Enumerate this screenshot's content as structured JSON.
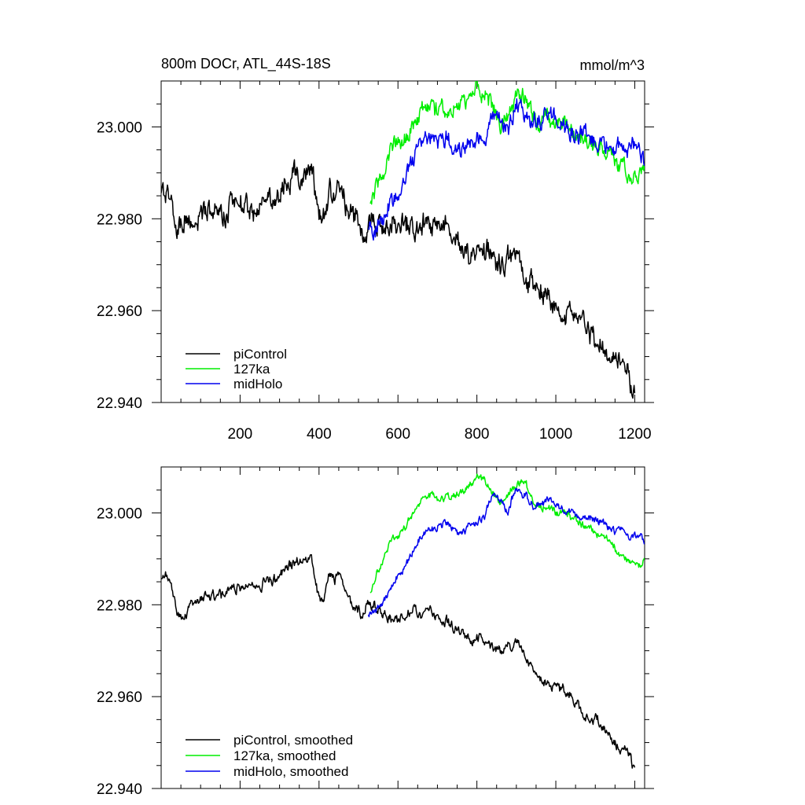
{
  "chart_data": [
    {
      "type": "line",
      "title": "800m DOCr, ATL_44S-18S",
      "units": "mmol/m^3",
      "xlabel": "",
      "ylabel": "",
      "xlim": [
        0,
        1225
      ],
      "ylim": [
        22.94,
        23.01
      ],
      "xticks": [
        200,
        400,
        600,
        800,
        1000,
        1200
      ],
      "xtick_labels": [
        "200",
        "400",
        "600",
        "800",
        "1000",
        "1200"
      ],
      "yticks": [
        22.94,
        22.96,
        22.98,
        23.0
      ],
      "ytick_labels": [
        "22.940",
        "22.960",
        "22.980",
        "23.000"
      ],
      "legend_position": "bottom-left",
      "series": [
        {
          "name": "piControl",
          "color": "#000000",
          "noise": 0.0045,
          "x": [
            0,
            10,
            20,
            30,
            40,
            50,
            60,
            80,
            100,
            120,
            140,
            160,
            180,
            200,
            220,
            240,
            260,
            280,
            300,
            320,
            340,
            360,
            370,
            380,
            390,
            400,
            410,
            420,
            430,
            440,
            450,
            460,
            470,
            480,
            490,
            500,
            510,
            520,
            540,
            560,
            580,
            600,
            620,
            640,
            660,
            680,
            700,
            720,
            740,
            760,
            780,
            800,
            820,
            840,
            860,
            880,
            900,
            920,
            940,
            960,
            980,
            1000,
            1020,
            1040,
            1060,
            1080,
            1100,
            1120,
            1140,
            1160,
            1180,
            1200
          ],
          "values": [
            22.986,
            22.987,
            22.985,
            22.982,
            22.978,
            22.977,
            22.978,
            22.98,
            22.981,
            22.982,
            22.981,
            22.982,
            22.983,
            22.984,
            22.984,
            22.983,
            22.985,
            22.985,
            22.986,
            22.988,
            22.989,
            22.99,
            22.989,
            22.99,
            22.986,
            22.981,
            22.98,
            22.984,
            22.986,
            22.985,
            22.987,
            22.984,
            22.981,
            22.98,
            22.98,
            22.979,
            22.978,
            22.98,
            22.98,
            22.978,
            22.978,
            22.976,
            22.978,
            22.979,
            22.978,
            22.98,
            22.977,
            22.976,
            22.975,
            22.974,
            22.973,
            22.973,
            22.972,
            22.971,
            22.97,
            22.971,
            22.972,
            22.969,
            22.966,
            22.964,
            22.963,
            22.962,
            22.961,
            22.96,
            22.958,
            22.956,
            22.955,
            22.953,
            22.951,
            22.949,
            22.948,
            22.943
          ]
        },
        {
          "name": "127ka",
          "color": "#00ee00",
          "noise": 0.0035,
          "x": [
            530,
            545,
            560,
            575,
            590,
            605,
            620,
            640,
            660,
            680,
            700,
            720,
            740,
            760,
            780,
            800,
            820,
            840,
            860,
            880,
            900,
            920,
            940,
            960,
            980,
            1000,
            1020,
            1040,
            1060,
            1080,
            1100,
            1120,
            1140,
            1160,
            1180,
            1200,
            1215,
            1225
          ],
          "values": [
            22.983,
            22.987,
            22.989,
            22.992,
            22.995,
            22.996,
            22.997,
            23.0,
            23.002,
            23.004,
            23.003,
            23.003,
            23.004,
            23.004,
            23.006,
            23.008,
            23.007,
            23.005,
            23.002,
            23.004,
            23.006,
            23.007,
            23.003,
            23.001,
            23.002,
            23.0,
            23.0,
            22.999,
            22.998,
            22.997,
            22.996,
            22.995,
            22.993,
            22.991,
            22.99,
            22.989,
            22.989,
            22.991
          ]
        },
        {
          "name": "midHolo",
          "color": "#0000ee",
          "noise": 0.0035,
          "x": [
            525,
            540,
            555,
            570,
            585,
            600,
            620,
            640,
            660,
            680,
            700,
            720,
            740,
            760,
            780,
            800,
            820,
            840,
            860,
            880,
            900,
            920,
            940,
            960,
            980,
            1000,
            1020,
            1040,
            1060,
            1080,
            1100,
            1120,
            1140,
            1160,
            1180,
            1200,
            1215,
            1225
          ],
          "values": [
            22.978,
            22.978,
            22.98,
            22.982,
            22.984,
            22.986,
            22.989,
            22.992,
            22.995,
            22.996,
            22.997,
            22.998,
            22.996,
            22.995,
            22.997,
            22.998,
            22.999,
            23.004,
            23.002,
            23.0,
            23.006,
            23.004,
            23.002,
            23.002,
            23.003,
            23.002,
            23.001,
            23.0,
            22.999,
            22.999,
            22.998,
            22.998,
            22.996,
            22.996,
            22.995,
            22.995,
            22.995,
            22.992
          ]
        }
      ],
      "legend": [
        "piControl",
        "127ka",
        "midHolo"
      ]
    },
    {
      "type": "line",
      "title": "",
      "units": "",
      "xlabel": "",
      "ylabel": "",
      "xlim": [
        0,
        1225
      ],
      "ylim": [
        22.94,
        23.01
      ],
      "xticks": [
        200,
        400,
        600,
        800,
        1000,
        1200
      ],
      "xtick_labels": [],
      "yticks": [
        22.94,
        22.96,
        22.98,
        23.0
      ],
      "ytick_labels": [
        "22.940",
        "22.960",
        "22.980",
        "23.000"
      ],
      "legend_position": "bottom-left",
      "series": [
        {
          "name": "piControl, smoothed",
          "color": "#000000",
          "noise": 0.002,
          "x": [
            0,
            10,
            20,
            30,
            40,
            50,
            60,
            80,
            100,
            120,
            140,
            160,
            180,
            200,
            220,
            240,
            260,
            280,
            300,
            320,
            340,
            360,
            370,
            380,
            390,
            400,
            410,
            420,
            430,
            440,
            450,
            460,
            470,
            480,
            490,
            500,
            510,
            520,
            540,
            560,
            580,
            600,
            620,
            640,
            660,
            680,
            700,
            720,
            740,
            760,
            780,
            800,
            820,
            840,
            860,
            880,
            900,
            920,
            940,
            960,
            980,
            1000,
            1020,
            1040,
            1060,
            1080,
            1100,
            1120,
            1140,
            1160,
            1180,
            1200
          ],
          "values": [
            22.986,
            22.987,
            22.985,
            22.982,
            22.978,
            22.977,
            22.978,
            22.98,
            22.981,
            22.982,
            22.981,
            22.982,
            22.983,
            22.984,
            22.984,
            22.983,
            22.985,
            22.985,
            22.986,
            22.988,
            22.989,
            22.99,
            22.989,
            22.99,
            22.986,
            22.981,
            22.98,
            22.984,
            22.986,
            22.985,
            22.987,
            22.984,
            22.981,
            22.98,
            22.98,
            22.979,
            22.978,
            22.98,
            22.98,
            22.978,
            22.978,
            22.976,
            22.978,
            22.979,
            22.978,
            22.98,
            22.977,
            22.976,
            22.975,
            22.974,
            22.973,
            22.973,
            22.972,
            22.971,
            22.97,
            22.971,
            22.972,
            22.969,
            22.966,
            22.964,
            22.963,
            22.962,
            22.961,
            22.96,
            22.958,
            22.956,
            22.955,
            22.953,
            22.951,
            22.949,
            22.948,
            22.943
          ]
        },
        {
          "name": "127ka, smoothed",
          "color": "#00ee00",
          "noise": 0.0015,
          "x": [
            530,
            545,
            560,
            575,
            590,
            605,
            620,
            640,
            660,
            680,
            700,
            720,
            740,
            760,
            780,
            800,
            820,
            840,
            860,
            880,
            900,
            920,
            940,
            960,
            980,
            1000,
            1020,
            1040,
            1060,
            1080,
            1100,
            1120,
            1140,
            1160,
            1180,
            1200,
            1215,
            1225
          ],
          "values": [
            22.983,
            22.987,
            22.989,
            22.992,
            22.995,
            22.996,
            22.997,
            23.0,
            23.002,
            23.004,
            23.003,
            23.003,
            23.004,
            23.004,
            23.006,
            23.008,
            23.007,
            23.005,
            23.002,
            23.004,
            23.006,
            23.007,
            23.003,
            23.001,
            23.002,
            23.0,
            23.0,
            22.999,
            22.998,
            22.997,
            22.996,
            22.995,
            22.993,
            22.991,
            22.99,
            22.989,
            22.989,
            22.991
          ]
        },
        {
          "name": "midHolo, smoothed",
          "color": "#0000ee",
          "noise": 0.0015,
          "x": [
            525,
            540,
            555,
            570,
            585,
            600,
            620,
            640,
            660,
            680,
            700,
            720,
            740,
            760,
            780,
            800,
            820,
            840,
            860,
            880,
            900,
            920,
            940,
            960,
            980,
            1000,
            1020,
            1040,
            1060,
            1080,
            1100,
            1120,
            1140,
            1160,
            1180,
            1200,
            1215,
            1225
          ],
          "values": [
            22.978,
            22.978,
            22.98,
            22.982,
            22.984,
            22.986,
            22.989,
            22.992,
            22.995,
            22.996,
            22.997,
            22.998,
            22.996,
            22.995,
            22.997,
            22.998,
            22.999,
            23.004,
            23.002,
            23.0,
            23.006,
            23.004,
            23.002,
            23.002,
            23.003,
            23.002,
            23.001,
            23.0,
            22.999,
            22.999,
            22.998,
            22.998,
            22.996,
            22.996,
            22.995,
            22.995,
            22.995,
            22.992
          ]
        }
      ],
      "legend": [
        "piControl, smoothed",
        "127ka, smoothed",
        "midHolo, smoothed"
      ]
    }
  ]
}
